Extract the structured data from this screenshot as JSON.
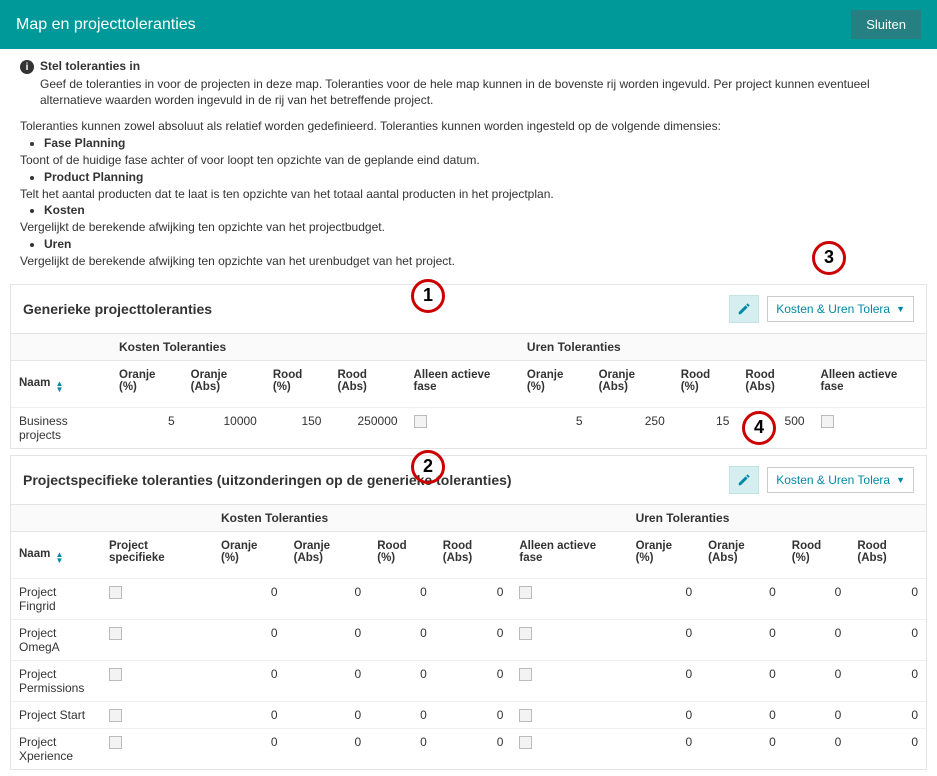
{
  "colors": {
    "header_bg": "#009999",
    "accent": "#0089a6",
    "callout_border": "#c00",
    "edit_bg": "#d6eef0"
  },
  "header": {
    "title": "Map en projecttoleranties",
    "close": "Sluiten"
  },
  "intro": {
    "title": "Stel toleranties in",
    "body": "Geef de toleranties in voor de projecten in deze map. Toleranties voor de hele map kunnen in de bovenste rij worden ingevuld. Per project kunnen eventueel alternatieve waarden worden ingevuld in de rij van het betreffende project."
  },
  "description": {
    "lead": "Toleranties kunnen zowel absoluut als relatief worden gedefinieerd. Toleranties kunnen worden ingesteld op de volgende dimensies:",
    "dims": [
      {
        "head": "Fase Planning",
        "body": "Toont of de huidige fase achter of voor loopt ten opzichte van de geplande eind datum."
      },
      {
        "head": "Product Planning",
        "body": "Telt het aantal producten dat te laat is ten opzichte van het totaal aantal producten in het projectplan."
      },
      {
        "head": "Kosten",
        "body": "Vergelijkt de berekende afwijking ten opzichte van het projectbudget."
      },
      {
        "head": "Uren",
        "body": "Vergelijkt de berekende afwijking ten opzichte van het urenbudget van het project."
      }
    ]
  },
  "generic": {
    "title": "Generieke projecttoleranties",
    "dropdown": "Kosten & Uren Tolera",
    "groups": {
      "kosten": "Kosten Toleranties",
      "uren": "Uren Toleranties"
    },
    "cols": {
      "naam": "Naam",
      "oranje_pct": "Oranje (%)",
      "oranje_abs": "Oranje (Abs)",
      "rood_pct": "Rood (%)",
      "rood_abs": "Rood (Abs)",
      "active_phase": "Alleen actieve fase"
    },
    "rows": [
      {
        "name": "Business projects",
        "k_opct": "5",
        "k_oabs": "10000",
        "k_rpct": "150",
        "k_rabs": "250000",
        "k_active": false,
        "u_opct": "5",
        "u_oabs": "250",
        "u_rpct": "15",
        "u_rabs": "500",
        "u_active": false
      }
    ]
  },
  "specific": {
    "title": "Projectspecifieke toleranties (uitzonderingen op de generieke toleranties)",
    "dropdown": "Kosten & Uren Tolera",
    "groups": {
      "kosten": "Kosten Toleranties",
      "uren": "Uren Toleranties"
    },
    "cols": {
      "naam": "Naam",
      "project_specifieke": "Project specifieke",
      "oranje_pct": "Oranje (%)",
      "oranje_abs": "Oranje (Abs)",
      "rood_pct": "Rood (%)",
      "rood_abs": "Rood (Abs)",
      "active_phase": "Alleen actieve fase"
    },
    "rows": [
      {
        "name": "Project Fingrid",
        "ps": false,
        "k_opct": "0",
        "k_oabs": "0",
        "k_rpct": "0",
        "k_rabs": "0",
        "k_active": false,
        "u_opct": "0",
        "u_oabs": "0",
        "u_rpct": "0",
        "u_rabs": "0"
      },
      {
        "name": "Project OmegA",
        "ps": false,
        "k_opct": "0",
        "k_oabs": "0",
        "k_rpct": "0",
        "k_rabs": "0",
        "k_active": false,
        "u_opct": "0",
        "u_oabs": "0",
        "u_rpct": "0",
        "u_rabs": "0"
      },
      {
        "name": "Project Permissions",
        "ps": false,
        "k_opct": "0",
        "k_oabs": "0",
        "k_rpct": "0",
        "k_rabs": "0",
        "k_active": false,
        "u_opct": "0",
        "u_oabs": "0",
        "u_rpct": "0",
        "u_rabs": "0"
      },
      {
        "name": "Project Start",
        "ps": false,
        "k_opct": "0",
        "k_oabs": "0",
        "k_rpct": "0",
        "k_rabs": "0",
        "k_active": false,
        "u_opct": "0",
        "u_oabs": "0",
        "u_rpct": "0",
        "u_rabs": "0"
      },
      {
        "name": "Project Xperience",
        "ps": false,
        "k_opct": "0",
        "k_oabs": "0",
        "k_rpct": "0",
        "k_rabs": "0",
        "k_active": false,
        "u_opct": "0",
        "u_oabs": "0",
        "u_rpct": "0",
        "u_rabs": "0"
      }
    ]
  },
  "callouts": {
    "1": "1",
    "2": "2",
    "3": "3",
    "4": "4"
  }
}
